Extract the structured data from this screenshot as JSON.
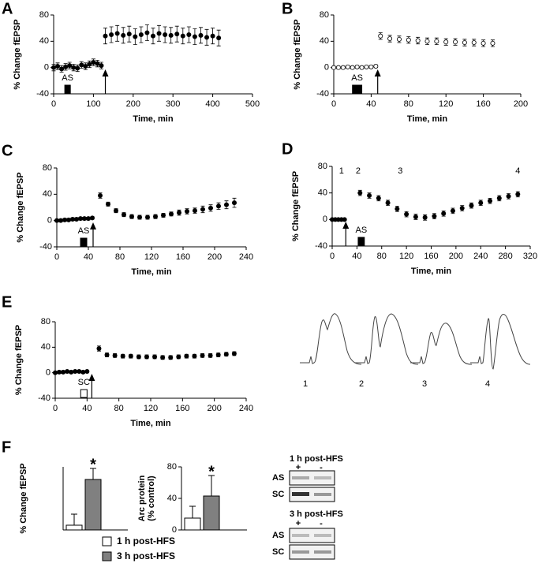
{
  "chart_data": [
    {
      "type": "scatter",
      "panel": "A",
      "ylabel": "% Change fEPSP",
      "xlabel": "Time, min",
      "color": "#000000",
      "xlim": [
        0,
        500
      ],
      "xticks": [
        0,
        100,
        200,
        300,
        400,
        500
      ],
      "ylim": [
        -40,
        80
      ],
      "yticks": [
        -40,
        0,
        40,
        80
      ],
      "x": [
        0,
        10,
        20,
        30,
        40,
        50,
        60,
        70,
        80,
        90,
        100,
        110,
        120,
        130,
        145,
        160,
        175,
        190,
        205,
        220,
        235,
        250,
        265,
        280,
        295,
        310,
        325,
        340,
        355,
        370,
        385,
        400,
        415
      ],
      "values": [
        0,
        2,
        -2,
        1,
        3,
        0,
        -1,
        4,
        2,
        5,
        8,
        6,
        3,
        48,
        50,
        52,
        49,
        51,
        47,
        50,
        53,
        48,
        52,
        50,
        49,
        51,
        48,
        50,
        47,
        49,
        46,
        48,
        45
      ],
      "errors": [
        5,
        5,
        5,
        5,
        5,
        5,
        5,
        5,
        5,
        5,
        5,
        5,
        5,
        12,
        12,
        12,
        12,
        12,
        12,
        12,
        12,
        12,
        12,
        12,
        12,
        12,
        12,
        12,
        12,
        12,
        12,
        12,
        12
      ],
      "drug": {
        "label": "AS",
        "start": 28,
        "end": 42,
        "filled": true
      },
      "arrow": 130
    },
    {
      "type": "scatter",
      "panel": "B",
      "ylabel": "% Change fEPSP",
      "xlabel": "Time, min",
      "color": "#ffffff",
      "xlim": [
        0,
        200
      ],
      "xticks": [
        0,
        40,
        80,
        120,
        160,
        200
      ],
      "ylim": [
        -40,
        80
      ],
      "yticks": [
        -40,
        0,
        40,
        80
      ],
      "x": [
        0,
        5,
        10,
        15,
        20,
        25,
        30,
        35,
        40,
        45,
        50,
        60,
        70,
        80,
        90,
        100,
        110,
        120,
        130,
        140,
        150,
        160,
        170
      ],
      "values": [
        0,
        0,
        0,
        1,
        0,
        1,
        0,
        1,
        1,
        2,
        48,
        44,
        43,
        42,
        41,
        40,
        40,
        39,
        39,
        38,
        38,
        37,
        37
      ],
      "errors": [
        2,
        2,
        2,
        2,
        2,
        2,
        2,
        2,
        2,
        2,
        5,
        5,
        5,
        5,
        5,
        5,
        5,
        5,
        5,
        5,
        5,
        5,
        5
      ],
      "drug": {
        "label": "AS",
        "start": 20,
        "end": 30,
        "filled": true
      },
      "arrow": 47
    },
    {
      "type": "scatter",
      "panel": "C",
      "ylabel": "% Change fEPSP",
      "xlabel": "Time, min",
      "color": "#000000",
      "xlim": [
        0,
        240
      ],
      "xticks": [
        0,
        40,
        80,
        120,
        160,
        200,
        240
      ],
      "ylim": [
        -40,
        80
      ],
      "yticks": [
        -40,
        0,
        40,
        80
      ],
      "x": [
        0,
        5,
        10,
        15,
        20,
        25,
        30,
        35,
        40,
        45,
        55,
        65,
        75,
        85,
        95,
        105,
        115,
        125,
        135,
        145,
        155,
        165,
        175,
        185,
        195,
        205,
        215,
        225
      ],
      "values": [
        0,
        0,
        1,
        1,
        2,
        2,
        3,
        3,
        3,
        4,
        38,
        25,
        15,
        9,
        6,
        5,
        5,
        6,
        8,
        10,
        12,
        14,
        15,
        17,
        19,
        22,
        24,
        27
      ],
      "errors": [
        2,
        2,
        2,
        2,
        2,
        2,
        2,
        2,
        2,
        2,
        4,
        3,
        3,
        3,
        3,
        3,
        3,
        3,
        3,
        3,
        4,
        4,
        4,
        5,
        5,
        5,
        6,
        7
      ],
      "drug": {
        "label": "AS",
        "start": 30,
        "end": 38,
        "filled": true
      },
      "arrow": 46
    },
    {
      "type": "scatter",
      "panel": "D",
      "ylabel": "% Change fEPSP",
      "xlabel": "Time, min",
      "color": "#000000",
      "xlim": [
        0,
        320
      ],
      "xticks": [
        0,
        40,
        80,
        120,
        160,
        200,
        240,
        280,
        320
      ],
      "ylim": [
        -40,
        80
      ],
      "yticks": [
        -40,
        0,
        40,
        80
      ],
      "x": [
        0,
        5,
        10,
        15,
        20,
        45,
        60,
        75,
        90,
        105,
        120,
        135,
        150,
        165,
        180,
        195,
        210,
        225,
        240,
        255,
        270,
        285,
        300
      ],
      "values": [
        0,
        0,
        0,
        0,
        0,
        40,
        36,
        32,
        25,
        16,
        8,
        4,
        3,
        5,
        9,
        13,
        17,
        21,
        25,
        28,
        32,
        35,
        38
      ],
      "errors": [
        1,
        1,
        1,
        1,
        1,
        4,
        4,
        4,
        4,
        4,
        4,
        4,
        4,
        4,
        4,
        4,
        4,
        4,
        4,
        4,
        4,
        4,
        4
      ],
      "drug": {
        "label": "AS",
        "start": 42,
        "end": 52,
        "filled": true
      },
      "arrow": 22,
      "markers": [
        {
          "label": "1",
          "x": 15
        },
        {
          "label": "2",
          "x": 42
        },
        {
          "label": "3",
          "x": 110
        },
        {
          "label": "4",
          "x": 300
        }
      ]
    },
    {
      "type": "scatter",
      "panel": "E",
      "ylabel": "% Change fEPSP",
      "xlabel": "Time, min",
      "color": "#000000",
      "xlim": [
        0,
        240
      ],
      "xticks": [
        0,
        40,
        80,
        120,
        160,
        200,
        240
      ],
      "ylim": [
        -40,
        80
      ],
      "yticks": [
        -40,
        0,
        40,
        80
      ],
      "x": [
        0,
        5,
        10,
        15,
        20,
        25,
        30,
        35,
        40,
        55,
        65,
        75,
        85,
        95,
        105,
        115,
        125,
        135,
        145,
        155,
        165,
        175,
        185,
        195,
        205,
        215,
        225
      ],
      "values": [
        0,
        1,
        1,
        2,
        1,
        2,
        2,
        1,
        2,
        38,
        28,
        27,
        26,
        26,
        25,
        25,
        25,
        24,
        24,
        25,
        26,
        26,
        27,
        27,
        28,
        29,
        30
      ],
      "errors": [
        2,
        2,
        2,
        2,
        2,
        2,
        2,
        2,
        2,
        4,
        3,
        3,
        3,
        3,
        3,
        3,
        3,
        3,
        3,
        3,
        3,
        3,
        3,
        3,
        3,
        3,
        3
      ],
      "drug": {
        "label": "SC",
        "start": 32,
        "end": 40,
        "filled": false
      },
      "arrow": 46
    },
    {
      "type": "bar",
      "panel": "F",
      "ylabel": [
        "% Change fEPSP"
      ],
      "ylim": [
        0,
        40
      ],
      "values": [
        3,
        32
      ],
      "errors": [
        7,
        7
      ],
      "annotation": "*"
    },
    {
      "type": "bar",
      "ylabel": [
        "Arc protein",
        "(% control)"
      ],
      "ylim": [
        0,
        80
      ],
      "yticks": [
        0,
        40,
        80
      ],
      "values": [
        15,
        43
      ],
      "errors": [
        15,
        26
      ],
      "annotation": "*"
    }
  ],
  "legend": [
    {
      "name": "1 h post-HFS",
      "color": "#ffffff"
    },
    {
      "name": "3 h post-HFS",
      "color": "#808080"
    }
  ],
  "traces": [
    "1",
    "2",
    "3",
    "4"
  ],
  "blots": [
    {
      "title": "1 h post-HFS",
      "lanes": [
        "+",
        "-"
      ],
      "rows": [
        "AS",
        "SC"
      ]
    },
    {
      "title": "3 h post-HFS",
      "lanes": [
        "+",
        "-"
      ],
      "rows": [
        "AS",
        "SC"
      ]
    }
  ]
}
